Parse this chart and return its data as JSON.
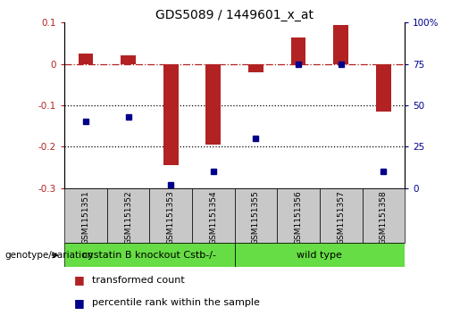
{
  "title": "GDS5089 / 1449601_x_at",
  "samples": [
    "GSM1151351",
    "GSM1151352",
    "GSM1151353",
    "GSM1151354",
    "GSM1151355",
    "GSM1151356",
    "GSM1151357",
    "GSM1151358"
  ],
  "transformed_count": [
    0.025,
    0.02,
    -0.245,
    -0.195,
    -0.02,
    0.065,
    0.095,
    -0.115
  ],
  "percentile_rank": [
    40,
    43,
    2,
    10,
    30,
    75,
    75,
    10
  ],
  "ylim_left": [
    -0.3,
    0.1
  ],
  "ylim_right": [
    0,
    100
  ],
  "yticks_left": [
    -0.3,
    -0.2,
    -0.1,
    0.0,
    0.1
  ],
  "yticks_right": [
    0,
    25,
    50,
    75,
    100
  ],
  "bar_color": "#B22222",
  "dot_color": "#00008B",
  "dashed_line_color": "#B22222",
  "dotted_line_color": "#000000",
  "group1_label": "cystatin B knockout Cstb-/-",
  "group2_label": "wild type",
  "group1_count": 4,
  "group2_count": 4,
  "group_color": "#66DD44",
  "sample_bg_color": "#C8C8C8",
  "legend_bar_label": "transformed count",
  "legend_dot_label": "percentile rank within the sample",
  "genotype_label": "genotype/variation",
  "title_fontsize": 10,
  "tick_fontsize": 7.5,
  "sample_fontsize": 6.5,
  "group_fontsize": 8,
  "legend_fontsize": 8
}
